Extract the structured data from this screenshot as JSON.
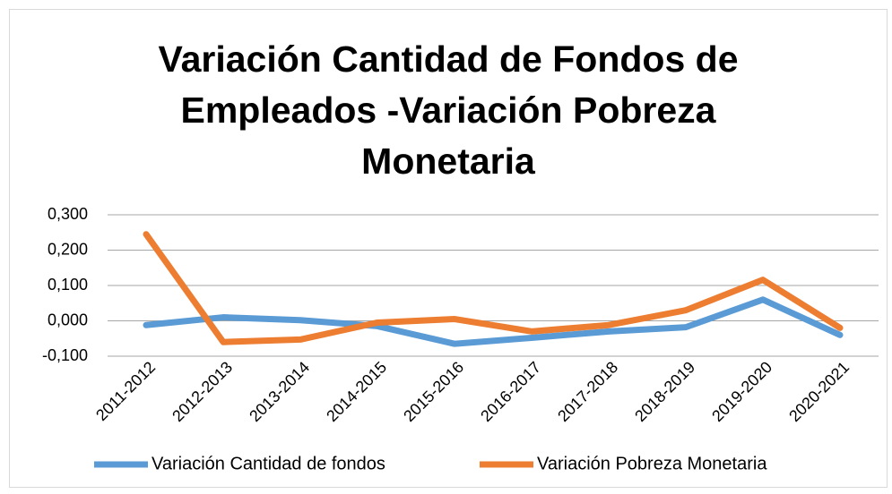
{
  "chart_data": {
    "type": "line",
    "title": "Variación Cantidad de Fondos de Empleados -Variación Pobreza Monetaria",
    "categories": [
      "2011-2012",
      "2012-2013",
      "2013-2014",
      "2014-2015",
      "2015-2016",
      "2016-2017",
      "2017-2018",
      "2018-2019",
      "2019-2020",
      "2020-2021"
    ],
    "series": [
      {
        "name": "Variación Cantidad de fondos",
        "color": "#5b9bd5",
        "values": [
          -0.012,
          0.01,
          0.002,
          -0.015,
          -0.065,
          -0.048,
          -0.03,
          -0.018,
          0.06,
          -0.04
        ]
      },
      {
        "name": "Variación Pobreza Monetaria",
        "color": "#ed7d31",
        "values": [
          0.245,
          -0.06,
          -0.053,
          -0.005,
          0.005,
          -0.03,
          -0.012,
          0.03,
          0.116,
          -0.02
        ]
      }
    ],
    "ylim": [
      -0.1,
      0.3
    ],
    "yticks": [
      {
        "value": -0.1,
        "label": "-0,100"
      },
      {
        "value": 0,
        "label": "0,000"
      },
      {
        "value": 0.1,
        "label": "0,100"
      },
      {
        "value": 0.2,
        "label": "0,200"
      },
      {
        "value": 0.3,
        "label": "0,300"
      }
    ],
    "grid": true,
    "legend": "bottom"
  }
}
